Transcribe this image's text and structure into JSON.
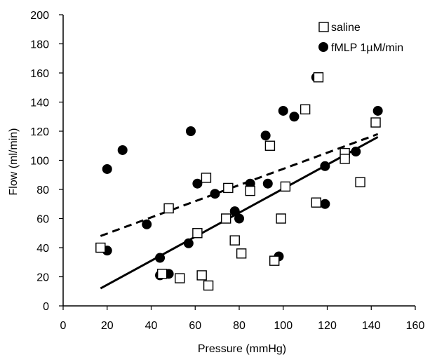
{
  "chart_data": {
    "type": "scatter",
    "xlabel": "Pressure (mmHg)",
    "ylabel": "Flow (ml/min)",
    "xlim": [
      0,
      160
    ],
    "ylim": [
      0,
      200
    ],
    "xticks": [
      0,
      20,
      40,
      60,
      80,
      100,
      120,
      140,
      160
    ],
    "yticks": [
      0,
      20,
      40,
      60,
      80,
      100,
      120,
      140,
      160,
      180,
      200
    ],
    "grid": false,
    "legend_position": "top-right",
    "series": [
      {
        "name": "saline",
        "marker": "open-square",
        "color": "#000000",
        "trendline": {
          "style": "dashed",
          "x": [
            17,
            143
          ],
          "y": [
            48,
            118
          ]
        },
        "points": [
          [
            17,
            40
          ],
          [
            45,
            22
          ],
          [
            48,
            67
          ],
          [
            53,
            19
          ],
          [
            61,
            50
          ],
          [
            63,
            21
          ],
          [
            65,
            88
          ],
          [
            66,
            14
          ],
          [
            74,
            60
          ],
          [
            75,
            81
          ],
          [
            78,
            45
          ],
          [
            81,
            36
          ],
          [
            85,
            79
          ],
          [
            94,
            110
          ],
          [
            96,
            31
          ],
          [
            99,
            60
          ],
          [
            101,
            82
          ],
          [
            110,
            135
          ],
          [
            115,
            71
          ],
          [
            116,
            157
          ],
          [
            128,
            105
          ],
          [
            128,
            101
          ],
          [
            135,
            85
          ],
          [
            142,
            126
          ]
        ]
      },
      {
        "name": "fMLP 1µM/min",
        "marker": "filled-circle",
        "color": "#000000",
        "trendline": {
          "style": "solid",
          "x": [
            17,
            143
          ],
          "y": [
            12,
            116
          ]
        },
        "points": [
          [
            20,
            94
          ],
          [
            20,
            38
          ],
          [
            27,
            107
          ],
          [
            38,
            56
          ],
          [
            44,
            33
          ],
          [
            44,
            21
          ],
          [
            48,
            22
          ],
          [
            57,
            43
          ],
          [
            58,
            120
          ],
          [
            61,
            84
          ],
          [
            69,
            77
          ],
          [
            78,
            65
          ],
          [
            80,
            60
          ],
          [
            85,
            84
          ],
          [
            92,
            117
          ],
          [
            93,
            84
          ],
          [
            98,
            34
          ],
          [
            100,
            134
          ],
          [
            105,
            130
          ],
          [
            115,
            157
          ],
          [
            119,
            96
          ],
          [
            119,
            70
          ],
          [
            133,
            106
          ],
          [
            143,
            134
          ]
        ]
      }
    ]
  }
}
